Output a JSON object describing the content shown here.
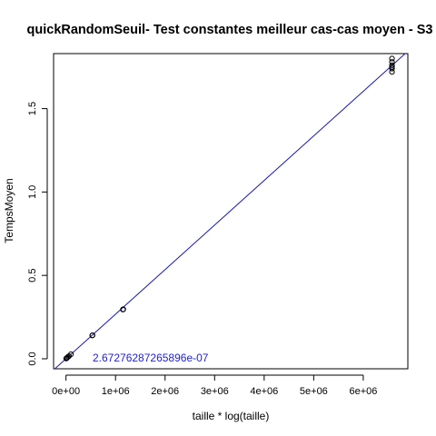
{
  "chart_data": {
    "type": "scatter",
    "title": "quickRandomSeuil- Test constantes meilleur cas-cas moyen - S3",
    "xlabel": "taille * log(taille)",
    "ylabel": "TempsMoyen",
    "xlim": [
      -250000,
      6900000
    ],
    "ylim": [
      -0.06,
      1.83
    ],
    "x_ticks": [
      0,
      1000000,
      2000000,
      3000000,
      4000000,
      5000000,
      6000000
    ],
    "x_tick_labels": [
      "0e+00",
      "1e+06",
      "2e+06",
      "3e+06",
      "4e+06",
      "5e+06",
      "6e+06"
    ],
    "y_ticks": [
      0.0,
      0.5,
      1.0,
      1.5
    ],
    "y_tick_labels": [
      "0.0",
      "0.5",
      "1.0",
      "1.5"
    ],
    "grid": false,
    "series": [
      {
        "x": [
          5000,
          10000,
          20000,
          40000,
          60000,
          100000,
          530000,
          535000,
          1150000,
          1155000,
          6580000,
          6580000,
          6580000,
          6580000,
          6580000,
          6580000
        ],
        "y": [
          0.0013,
          0.0027,
          0.0054,
          0.011,
          0.016,
          0.027,
          0.14,
          0.141,
          0.295,
          0.297,
          1.72,
          1.74,
          1.75,
          1.76,
          1.78,
          1.8
        ]
      }
    ],
    "fit_line": {
      "slope": 2.67276287265896e-07,
      "intercept": 0
    },
    "annotation": "2.67276287265896e-07",
    "colors": {
      "points": "#000000",
      "fit_line": "#1a1aaa",
      "annotation": "#2222cc"
    }
  }
}
